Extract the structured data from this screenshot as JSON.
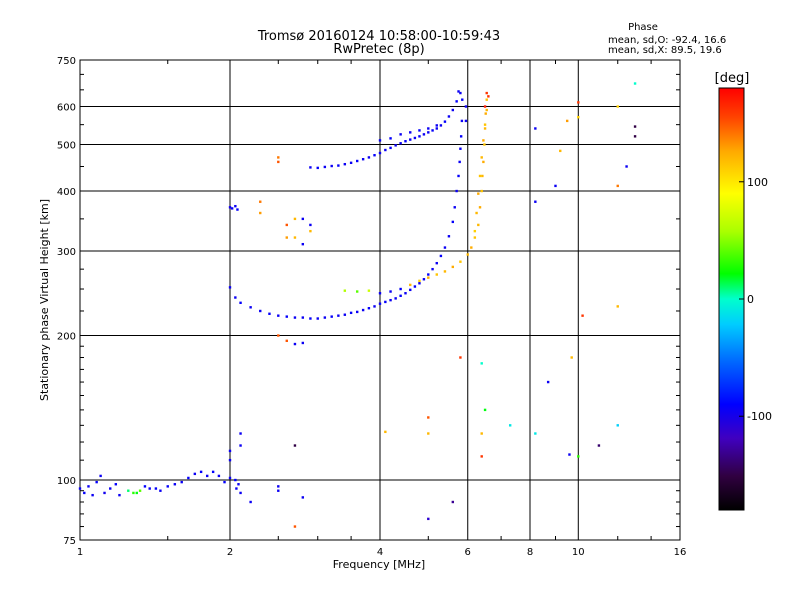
{
  "chart_data": {
    "type": "scatter",
    "title": "Tromsø 20160124 10:58:00-10:59:43",
    "subtitle": "RwPretec (8p)",
    "xlabel": "Frequency [MHz]",
    "ylabel": "Stationary phase Virtual Height [km]",
    "x_scale": "log",
    "y_scale": "log",
    "xlim": [
      1,
      16
    ],
    "ylim": [
      75,
      750
    ],
    "x_ticks": [
      1,
      2,
      4,
      6,
      8,
      10,
      16
    ],
    "y_ticks": [
      75,
      100,
      200,
      300,
      400,
      500,
      600,
      750
    ],
    "grid": true,
    "stats": {
      "heading": "Phase",
      "line_o": "mean, sd,O: -92.4, 16.6",
      "line_x": "mean, sd,X: 89.5, 19.6"
    },
    "colorbar": {
      "unit": "[deg]",
      "ticks": [
        100,
        0,
        -100
      ],
      "range": [
        -180,
        180
      ]
    },
    "series": [
      {
        "points": [
          [
            1.0,
            96,
            -95
          ],
          [
            1.02,
            94,
            -92
          ],
          [
            1.04,
            97,
            -95
          ],
          [
            1.06,
            93,
            -95
          ],
          [
            1.08,
            99,
            -92
          ],
          [
            1.1,
            102,
            -95
          ],
          [
            1.12,
            94,
            -98
          ],
          [
            1.15,
            96,
            -95
          ],
          [
            1.18,
            98,
            -92
          ],
          [
            1.2,
            93,
            -95
          ],
          [
            1.25,
            95,
            10
          ],
          [
            1.28,
            94,
            30
          ],
          [
            1.3,
            94,
            20
          ],
          [
            1.32,
            95,
            40
          ],
          [
            1.35,
            97,
            -90
          ],
          [
            1.38,
            96,
            -95
          ],
          [
            1.42,
            96,
            -92
          ],
          [
            1.45,
            95,
            -95
          ],
          [
            1.5,
            97,
            -92
          ],
          [
            1.55,
            98,
            -95
          ],
          [
            1.6,
            99,
            -95
          ],
          [
            1.65,
            101,
            -92
          ],
          [
            1.7,
            103,
            -95
          ],
          [
            1.75,
            104,
            -92
          ],
          [
            1.8,
            102,
            -95
          ],
          [
            1.85,
            104,
            -90
          ],
          [
            1.9,
            102,
            -95
          ],
          [
            1.95,
            99,
            -92
          ],
          [
            2.0,
            101,
            -95
          ],
          [
            2.05,
            100,
            -90
          ],
          [
            2.08,
            98,
            -95
          ],
          [
            2.0,
            370,
            -98
          ],
          [
            2.02,
            368,
            -95
          ],
          [
            2.05,
            372,
            -95
          ],
          [
            2.07,
            366,
            -92
          ],
          [
            2.0,
            252,
            -95
          ],
          [
            2.05,
            240,
            -95
          ],
          [
            2.1,
            234,
            -92
          ],
          [
            2.2,
            229,
            -95
          ],
          [
            2.3,
            225,
            -95
          ],
          [
            2.4,
            222,
            -92
          ],
          [
            2.5,
            220,
            -95
          ],
          [
            2.6,
            219,
            -92
          ],
          [
            2.7,
            218,
            -95
          ],
          [
            2.8,
            218,
            -95
          ],
          [
            2.9,
            217,
            -92
          ],
          [
            3.0,
            217,
            -95
          ],
          [
            3.1,
            218,
            -95
          ],
          [
            3.2,
            219,
            -92
          ],
          [
            3.3,
            220,
            -95
          ],
          [
            3.4,
            221,
            -95
          ],
          [
            3.5,
            223,
            -92
          ],
          [
            3.6,
            224,
            -95
          ],
          [
            3.7,
            226,
            -95
          ],
          [
            3.8,
            228,
            -92
          ],
          [
            3.9,
            230,
            -95
          ],
          [
            4.0,
            233,
            -95
          ],
          [
            4.1,
            235,
            -92
          ],
          [
            4.2,
            237,
            -95
          ],
          [
            4.3,
            239,
            -95
          ],
          [
            4.4,
            242,
            -92
          ],
          [
            4.5,
            245,
            -95
          ],
          [
            4.6,
            249,
            -95
          ],
          [
            4.7,
            253,
            -92
          ],
          [
            4.8,
            257,
            -95
          ],
          [
            4.9,
            262,
            -95
          ],
          [
            5.0,
            268,
            -92
          ],
          [
            5.1,
            275,
            -95
          ],
          [
            5.2,
            283,
            -95
          ],
          [
            5.3,
            293,
            -92
          ],
          [
            5.4,
            305,
            -95
          ],
          [
            5.5,
            322,
            -95
          ],
          [
            5.6,
            345,
            -92
          ],
          [
            5.65,
            370,
            -95
          ],
          [
            5.7,
            400,
            -95
          ],
          [
            5.75,
            430,
            -92
          ],
          [
            5.78,
            460,
            -95
          ],
          [
            5.8,
            490,
            -95
          ],
          [
            5.82,
            520,
            -92
          ],
          [
            5.84,
            560,
            -95
          ],
          [
            2.9,
            448,
            -95
          ],
          [
            3.0,
            447,
            -92
          ],
          [
            3.1,
            449,
            -95
          ],
          [
            3.2,
            451,
            -95
          ],
          [
            3.3,
            452,
            -92
          ],
          [
            3.4,
            455,
            -95
          ],
          [
            3.5,
            458,
            -95
          ],
          [
            3.6,
            462,
            -92
          ],
          [
            3.7,
            466,
            -95
          ],
          [
            3.8,
            470,
            -95
          ],
          [
            3.9,
            475,
            -92
          ],
          [
            4.0,
            480,
            -95
          ],
          [
            4.1,
            487,
            -95
          ],
          [
            4.2,
            492,
            -92
          ],
          [
            4.3,
            498,
            -95
          ],
          [
            4.4,
            503,
            -95
          ],
          [
            4.5,
            508,
            -92
          ],
          [
            4.6,
            512,
            -95
          ],
          [
            4.7,
            516,
            -95
          ],
          [
            4.8,
            520,
            -92
          ],
          [
            4.9,
            525,
            -95
          ],
          [
            5.0,
            530,
            -95
          ],
          [
            5.1,
            535,
            -92
          ],
          [
            5.2,
            540,
            -95
          ],
          [
            5.3,
            548,
            -95
          ],
          [
            5.4,
            558,
            -92
          ],
          [
            5.5,
            572,
            -95
          ],
          [
            5.6,
            590,
            -95
          ],
          [
            5.7,
            615,
            -92
          ],
          [
            5.75,
            645,
            -95
          ],
          [
            5.8,
            640,
            -95
          ],
          [
            5.85,
            620,
            -92
          ],
          [
            4.0,
            510,
            -95
          ],
          [
            4.2,
            515,
            -92
          ],
          [
            4.4,
            525,
            -95
          ],
          [
            4.6,
            530,
            -95
          ],
          [
            4.8,
            535,
            -92
          ],
          [
            5.0,
            540,
            -95
          ],
          [
            5.2,
            548,
            -95
          ],
          [
            3.4,
            248,
            60
          ],
          [
            3.6,
            247,
            40
          ],
          [
            3.8,
            248,
            70
          ],
          [
            4.0,
            245,
            -95
          ],
          [
            4.2,
            247,
            -95
          ],
          [
            4.4,
            250,
            -92
          ],
          [
            4.6,
            255,
            120
          ],
          [
            4.8,
            260,
            110
          ],
          [
            5.0,
            264,
            125
          ],
          [
            5.2,
            268,
            115
          ],
          [
            5.4,
            272,
            120
          ],
          [
            5.6,
            278,
            125
          ],
          [
            5.8,
            285,
            115
          ],
          [
            6.0,
            295,
            120
          ],
          [
            6.1,
            305,
            125
          ],
          [
            6.2,
            320,
            115
          ],
          [
            6.3,
            340,
            120
          ],
          [
            6.35,
            370,
            125
          ],
          [
            6.4,
            400,
            115
          ],
          [
            6.42,
            430,
            120
          ],
          [
            6.45,
            460,
            125
          ],
          [
            6.48,
            500,
            115
          ],
          [
            6.5,
            540,
            120
          ],
          [
            6.52,
            580,
            125
          ],
          [
            6.55,
            620,
            115
          ],
          [
            6.2,
            330,
            110
          ],
          [
            6.25,
            360,
            120
          ],
          [
            6.3,
            395,
            125
          ],
          [
            6.35,
            430,
            115
          ],
          [
            6.4,
            470,
            120
          ],
          [
            6.45,
            510,
            125
          ],
          [
            6.5,
            550,
            115
          ],
          [
            6.55,
            590,
            120
          ],
          [
            6.6,
            630,
            160
          ],
          [
            5.95,
            600,
            -95
          ],
          [
            5.95,
            560,
            -95
          ],
          [
            6.5,
            600,
            170
          ],
          [
            6.55,
            640,
            160
          ],
          [
            9.0,
            410,
            -95
          ],
          [
            9.5,
            560,
            130
          ],
          [
            10.0,
            612,
            160
          ],
          [
            10.0,
            570,
            110
          ],
          [
            10.2,
            220,
            160
          ],
          [
            12.0,
            600,
            110
          ],
          [
            12.0,
            410,
            140
          ],
          [
            12.0,
            230,
            120
          ],
          [
            12.5,
            450,
            -95
          ],
          [
            13.0,
            670,
            0
          ],
          [
            13.0,
            545,
            -150
          ],
          [
            13.0,
            520,
            -150
          ],
          [
            8.2,
            540,
            -95
          ],
          [
            8.2,
            380,
            -95
          ],
          [
            9.2,
            485,
            120
          ],
          [
            9.7,
            180,
            120
          ],
          [
            8.7,
            160,
            -95
          ],
          [
            9.6,
            113,
            -95
          ],
          [
            10.0,
            112,
            30
          ],
          [
            11.0,
            118,
            -140
          ],
          [
            12.0,
            130,
            -20
          ],
          [
            8.2,
            125,
            -10
          ],
          [
            7.3,
            130,
            -10
          ],
          [
            6.5,
            140,
            20
          ],
          [
            6.4,
            175,
            0
          ],
          [
            5.8,
            180,
            160
          ],
          [
            6.4,
            125,
            120
          ],
          [
            6.4,
            112,
            160
          ],
          [
            5.0,
            135,
            150
          ],
          [
            5.0,
            125,
            120
          ],
          [
            4.1,
            126,
            120
          ],
          [
            5.0,
            83,
            -110
          ],
          [
            5.6,
            90,
            -130
          ],
          [
            2.5,
            460,
            150
          ],
          [
            2.5,
            470,
            140
          ],
          [
            2.6,
            340,
            150
          ],
          [
            2.6,
            320,
            130
          ],
          [
            2.7,
            320,
            120
          ],
          [
            2.8,
            310,
            -95
          ],
          [
            2.5,
            200,
            150
          ],
          [
            2.6,
            195,
            150
          ],
          [
            2.7,
            192,
            -95
          ],
          [
            2.8,
            193,
            -95
          ],
          [
            2.3,
            360,
            130
          ],
          [
            2.3,
            380,
            140
          ],
          [
            2.7,
            350,
            120
          ],
          [
            2.8,
            350,
            -95
          ],
          [
            2.9,
            340,
            -95
          ],
          [
            2.9,
            330,
            120
          ],
          [
            2.5,
            97,
            -95
          ],
          [
            2.5,
            95,
            -95
          ],
          [
            2.7,
            118,
            -150
          ],
          [
            2.8,
            92,
            -95
          ],
          [
            2.7,
            80,
            150
          ],
          [
            2.1,
            125,
            -95
          ],
          [
            2.1,
            118,
            -95
          ],
          [
            2.0,
            110,
            -95
          ],
          [
            2.0,
            115,
            -95
          ],
          [
            2.06,
            96,
            -95
          ],
          [
            2.1,
            94,
            -95
          ],
          [
            2.2,
            90,
            -95
          ]
        ]
      }
    ]
  }
}
